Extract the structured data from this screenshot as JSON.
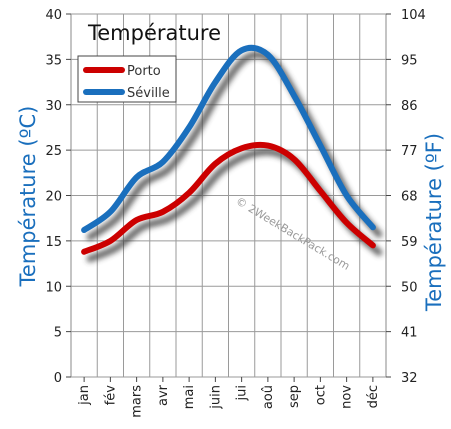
{
  "chart_data": {
    "type": "line",
    "title": "Température",
    "categories": [
      "jan",
      "fév",
      "mars",
      "avr",
      "mai",
      "juin",
      "jui",
      "aoû",
      "sep",
      "oct",
      "nov",
      "déc"
    ],
    "series": [
      {
        "name": "Porto",
        "color": "#cc0000",
        "values": [
          13.8,
          15.0,
          17.3,
          18.2,
          20.3,
          23.5,
          25.2,
          25.5,
          24.0,
          20.5,
          17.0,
          14.5
        ]
      },
      {
        "name": "Séville",
        "color": "#1a6fbd",
        "values": [
          16.2,
          18.2,
          22.0,
          23.7,
          27.5,
          32.5,
          36.0,
          35.5,
          31.0,
          25.5,
          20.0,
          16.5
        ]
      }
    ],
    "ylabel": "Température  (ºC)",
    "ylabel_right": "Température  (ºF)",
    "ylim": [
      0,
      40
    ],
    "yticks": [
      "0",
      "5",
      "10",
      "15",
      "20",
      "25",
      "30",
      "35",
      "40"
    ],
    "ylim_right": [
      32,
      104
    ],
    "yticks_right": [
      "32",
      "41",
      "50",
      "59",
      "68",
      "77",
      "86",
      "95",
      "104"
    ],
    "legend_position": "top-left",
    "grid": true,
    "axis_title_color": "#1a6fbd",
    "watermark": "© 2WeekBackPack.com"
  }
}
